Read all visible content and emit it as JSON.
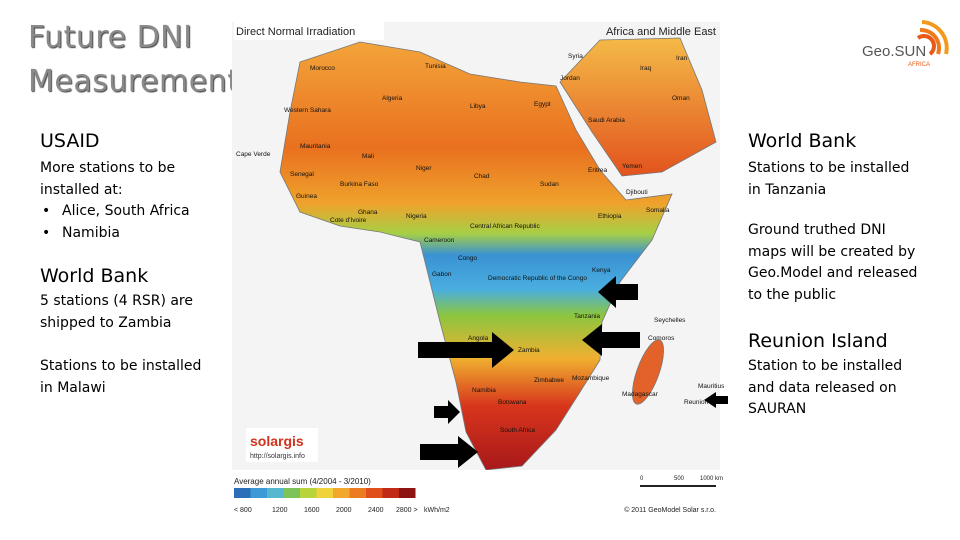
{
  "title": [
    "Future DNI",
    "Measurements"
  ],
  "left": {
    "usaid": {
      "heading": "USAID",
      "lines": [
        "More stations to be",
        "installed at:"
      ],
      "bullets": [
        "Alice, South Africa",
        "Namibia"
      ]
    },
    "world_bank": {
      "heading": "World Bank",
      "lines": [
        "5 stations (4 RSR) are",
        "shipped to Zambia"
      ]
    },
    "malawi": {
      "lines": [
        "Stations to be installed",
        "in Malawi"
      ]
    }
  },
  "right": {
    "world_bank": {
      "heading": "World Bank",
      "lines": [
        "Stations to be installed",
        "in Tanzania"
      ]
    },
    "ground": {
      "lines": [
        "Ground truthed DNI",
        "maps will be created by",
        "Geo.Model and released",
        "to the public"
      ]
    },
    "reunion": {
      "heading": "Reunion Island",
      "lines": [
        "Station to be installed",
        "and data released on",
        "SAURAN"
      ]
    }
  },
  "logo": {
    "name": "Geo.SUN",
    "sub": "AFRICA"
  },
  "map": {
    "title": "Direct Normal Irradiation",
    "region": "Africa and Middle East",
    "brand": "solargis",
    "url": "http://solargis.info",
    "legend_title": "Average annual sum (4/2004 - 3/2010)",
    "legend_labels": [
      "< 800",
      "1200",
      "1600",
      "2000",
      "2400",
      "2800 >"
    ],
    "unit": "kWh/m2",
    "scale_labels": [
      "0",
      "500",
      "1000 km"
    ],
    "copyright": "© 2011 GeoModel Solar s.r.o.",
    "places": [
      "Morocco",
      "Tunisia",
      "Algeria",
      "Libya",
      "Egypt",
      "Western Sahara",
      "Mauritania",
      "Mali",
      "Niger",
      "Chad",
      "Sudan",
      "Eritrea",
      "Yemen",
      "Djibouti",
      "Ethiopia",
      "Somalia",
      "Nigeria",
      "Central African Republic",
      "Cameroon",
      "Gabon",
      "Congo",
      "Democratic Republic of the Congo",
      "Kenya",
      "Tanzania",
      "Angola",
      "Zambia",
      "Mozambique",
      "Zimbabwe",
      "Namibia",
      "Botswana",
      "Madagascar",
      "South Africa",
      "Saudi Arabia",
      "Iraq",
      "Iran",
      "Syria",
      "Jordan",
      "Oman",
      "Guinea",
      "Burkina Faso",
      "Ghana",
      "Cote d'Ivoire",
      "Senegal",
      "Cape Verde",
      "Reunion",
      "Seychelles",
      "Comoros",
      "Mauritius"
    ]
  }
}
